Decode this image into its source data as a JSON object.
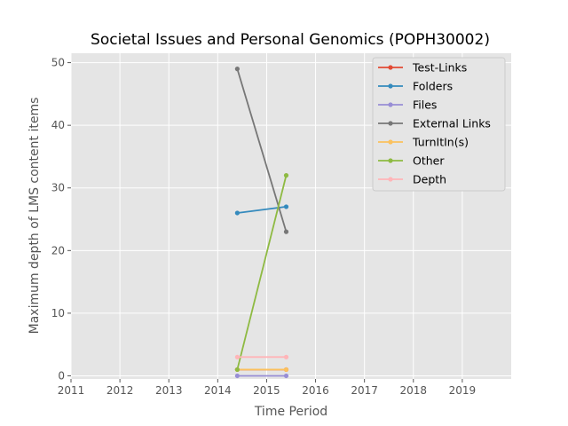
{
  "chart_data": {
    "type": "line",
    "title": "Societal Issues and Personal Genomics (POPH30002)",
    "xlabel": "Time Period",
    "ylabel": "Maximum depth of LMS content items",
    "xlim": [
      2011,
      2020
    ],
    "ylim": [
      -0.5,
      51.5
    ],
    "xticks": [
      2011,
      2012,
      2013,
      2014,
      2015,
      2016,
      2017,
      2018,
      2019
    ],
    "yticks": [
      0,
      10,
      20,
      30,
      40,
      50
    ],
    "grid": true,
    "legend_position": "top-right",
    "background": "#e5e5e5",
    "series": [
      {
        "name": "Test-Links",
        "color": "#e24a33",
        "x": [
          2014.4,
          2015.4
        ],
        "y": [
          1,
          1
        ]
      },
      {
        "name": "Folders",
        "color": "#348abd",
        "x": [
          2014.4,
          2015.4
        ],
        "y": [
          26,
          27
        ]
      },
      {
        "name": "Files",
        "color": "#988ed5",
        "x": [
          2014.4,
          2015.4
        ],
        "y": [
          0,
          0
        ]
      },
      {
        "name": "External Links",
        "color": "#777777",
        "x": [
          2014.4,
          2015.4
        ],
        "y": [
          49,
          23
        ]
      },
      {
        "name": "TurnItIn(s)",
        "color": "#fbc15e",
        "x": [
          2014.4,
          2015.4
        ],
        "y": [
          1,
          1
        ]
      },
      {
        "name": "Other",
        "color": "#8eba42",
        "x": [
          2014.4,
          2015.4
        ],
        "y": [
          1,
          32
        ]
      },
      {
        "name": "Depth",
        "color": "#ffb5b8",
        "x": [
          2014.4,
          2015.4
        ],
        "y": [
          3,
          3
        ]
      }
    ]
  }
}
